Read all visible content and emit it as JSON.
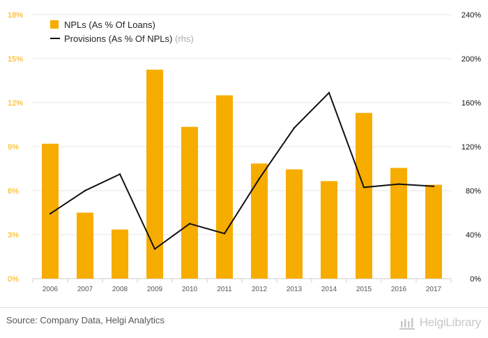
{
  "chart_data": {
    "type": "bar+line",
    "categories": [
      "2006",
      "2007",
      "2008",
      "2009",
      "2010",
      "2011",
      "2012",
      "2013",
      "2014",
      "2015",
      "2016",
      "2017"
    ],
    "series": [
      {
        "name": "NPLs (As % Of Loans)",
        "kind": "bar",
        "axis": "left",
        "color": "#f7ac00",
        "values": [
          9.2,
          4.5,
          3.35,
          14.25,
          10.35,
          12.5,
          7.85,
          7.45,
          6.65,
          11.3,
          7.55,
          6.4
        ]
      },
      {
        "name": "Provisions (As % Of NPLs)",
        "legend_suffix": "(rhs)",
        "kind": "line",
        "axis": "right",
        "color": "#111111",
        "values": [
          59,
          80,
          95,
          27,
          50,
          41,
          91,
          137,
          169,
          83,
          86,
          84
        ]
      }
    ],
    "y_left": {
      "min": 0,
      "max": 18,
      "ticks": [
        0,
        3,
        6,
        9,
        12,
        15,
        18
      ],
      "tick_labels": [
        "0%",
        "3%",
        "6%",
        "9%",
        "12%",
        "15%",
        "18%"
      ],
      "color": "#f7ac00"
    },
    "y_right": {
      "min": 0,
      "max": 240,
      "ticks": [
        0,
        40,
        80,
        120,
        160,
        200,
        240
      ],
      "tick_labels": [
        "0%",
        "40%",
        "80%",
        "120%",
        "160%",
        "200%",
        "240%"
      ],
      "color": "#111111"
    },
    "grid": true,
    "legend_position": "top-left"
  },
  "footer": {
    "source": "Source: Company Data, Helgi Analytics",
    "logo_text": "HelgiLibrary"
  },
  "colors": {
    "grid": "#e6e6e6",
    "axis_label_x": "#555555"
  }
}
